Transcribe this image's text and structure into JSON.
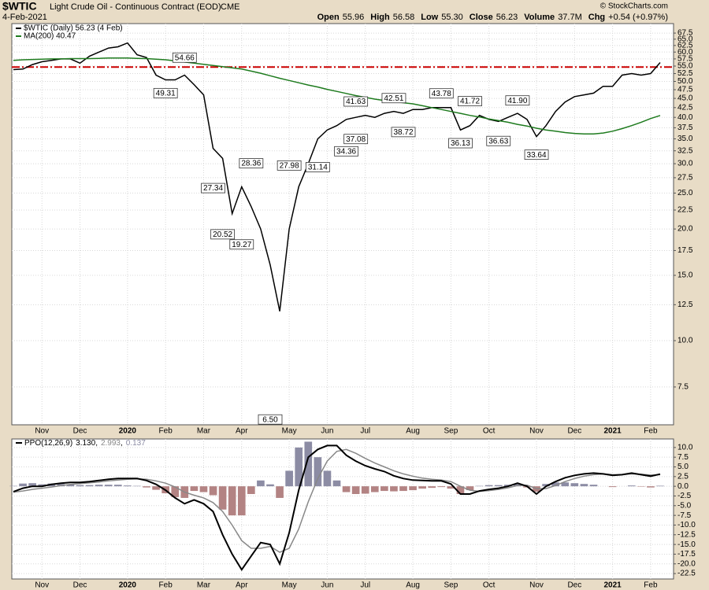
{
  "header": {
    "title": "$WTIC",
    "subtitle": "Light Crude Oil - Continuous Contract (EOD)",
    "exchange": "CME",
    "date": "4-Feb-2021",
    "credit": "© StockCharts.com",
    "stats": [
      {
        "label": "Open",
        "value": "55.96"
      },
      {
        "label": "High",
        "value": "56.58"
      },
      {
        "label": "Low",
        "value": "55.30"
      },
      {
        "label": "Close",
        "value": "56.23"
      },
      {
        "label": "Volume",
        "value": "37.7M"
      },
      {
        "label": "Chg",
        "value": "+0.54 (+0.97%)"
      }
    ]
  },
  "chart_data": [
    {
      "type": "line",
      "log_scale": true,
      "grid": true,
      "categories": [
        null,
        null,
        null,
        "Nov",
        null,
        null,
        null,
        "Dec",
        null,
        null,
        null,
        null,
        "2020",
        null,
        null,
        null,
        "Feb",
        null,
        null,
        null,
        "Mar",
        null,
        null,
        null,
        "Apr",
        null,
        null,
        null,
        null,
        "May",
        null,
        null,
        null,
        "Jun",
        null,
        null,
        null,
        "Jul",
        null,
        null,
        null,
        null,
        "Aug",
        null,
        null,
        null,
        "Sep",
        null,
        null,
        null,
        "Oct",
        null,
        null,
        null,
        null,
        "Nov",
        null,
        null,
        null,
        "Dec",
        null,
        null,
        null,
        "2021",
        null,
        null,
        null,
        "Feb",
        null
      ],
      "series": [
        {
          "name": "$WTIC (Daily) 56.23 (4 Feb)",
          "color": "#000000",
          "values": [
            53.8,
            54,
            55.5,
            56.5,
            57,
            57.5,
            57.5,
            56,
            58.5,
            60,
            61.5,
            62,
            63.5,
            59,
            58,
            52,
            50.5,
            50.5,
            52,
            49,
            46,
            33,
            31,
            22,
            26,
            23,
            20,
            16,
            12,
            20,
            26,
            30,
            35,
            37,
            38,
            39.5,
            40,
            40.5,
            40,
            41,
            41.5,
            41,
            42,
            42,
            42.5,
            42.5,
            42.5,
            37,
            38,
            40.5,
            39.5,
            39,
            40,
            41,
            39.5,
            35.5,
            38,
            41.5,
            44,
            45.5,
            46,
            46.5,
            48.5,
            48.5,
            52,
            52.5,
            52,
            52.5,
            56.23
          ]
        },
        {
          "name": "MA(200) 40.47",
          "color": "#1e7b1e",
          "values": [
            57,
            57.2,
            57.3,
            57.4,
            57.5,
            57.5,
            57.6,
            57.6,
            57.6,
            57.7,
            57.8,
            57.8,
            57.8,
            57.7,
            57.6,
            57.4,
            57.2,
            56.8,
            56.4,
            56,
            55.6,
            55.2,
            54.8,
            54.4,
            54,
            53.3,
            52.6,
            51.8,
            51,
            50.3,
            49.6,
            48.9,
            48.3,
            47.6,
            47,
            46.4,
            45.8,
            45.3,
            44.8,
            44.4,
            44.1,
            43.8,
            43.5,
            43,
            42.5,
            42,
            41.5,
            41,
            40.5,
            40.1,
            39.6,
            39.2,
            38.8,
            38.3,
            37.9,
            37.4,
            37,
            36.7,
            36.4,
            36.2,
            36.1,
            36.1,
            36.3,
            36.7,
            37.3,
            38,
            38.8,
            39.7,
            40.47
          ]
        }
      ],
      "reference_line": {
        "value": 54.66,
        "color": "#cc0000"
      },
      "annotations": {
        "x": [
          16,
          18,
          21,
          22,
          24,
          25,
          27,
          29,
          32,
          35,
          36,
          36,
          40,
          41,
          45,
          47,
          48,
          51,
          53,
          55
        ],
        "values": [
          49.31,
          54.66,
          27.34,
          20.52,
          19.27,
          28.36,
          6.5,
          27.98,
          31.14,
          34.36,
          41.63,
          37.08,
          42.51,
          38.72,
          43.78,
          36.13,
          41.72,
          36.63,
          41.9,
          33.64
        ],
        "value_labels": [
          "49.31",
          "54.66",
          "27.34",
          "20.52",
          "19.27",
          "28.36",
          "6.50",
          "27.98",
          "31.14",
          "34.36",
          "41.63",
          "37.08",
          "42.51",
          "38.72",
          "43.78",
          "36.13",
          "41.72",
          "36.63",
          "41.90",
          "33.64"
        ],
        "placement": [
          "below",
          "above",
          "below",
          "below",
          "below",
          "above",
          "below",
          "above",
          "below",
          "below",
          "above",
          "below",
          "above",
          "below",
          "above",
          "below",
          "above",
          "below",
          "above",
          "below"
        ]
      },
      "ylim": [
        5.93,
        71.6
      ],
      "yticks": [
        7.5,
        {
          "value": 10,
          "label": "10.0"
        },
        12.5,
        {
          "value": 15,
          "label": "15.0"
        },
        17.5,
        {
          "value": 20,
          "label": "20.0"
        },
        22.5,
        {
          "value": 25,
          "label": "25.0"
        },
        27.5,
        {
          "value": 30,
          "label": "30.0"
        },
        32.5,
        {
          "value": 35,
          "label": "35.0"
        },
        37.5,
        {
          "value": 40,
          "label": "40.0"
        },
        42.5,
        {
          "value": 45,
          "label": "45.0"
        },
        47.5,
        {
          "value": 50,
          "label": "50.0"
        },
        52.5,
        {
          "value": 55,
          "label": "55.0"
        },
        57.5,
        {
          "value": 60,
          "label": "60.0"
        },
        62.5,
        {
          "value": 65,
          "label": "65.0"
        },
        67.5
      ]
    },
    {
      "type": "line",
      "grid": true,
      "legend_label": "PPO(12,26,9)",
      "categories": [
        null,
        null,
        null,
        "Nov",
        null,
        null,
        null,
        "Dec",
        null,
        null,
        null,
        null,
        "2020",
        null,
        null,
        null,
        "Feb",
        null,
        null,
        null,
        "Mar",
        null,
        null,
        null,
        "Apr",
        null,
        null,
        null,
        null,
        "May",
        null,
        null,
        null,
        "Jun",
        null,
        null,
        null,
        "Jul",
        null,
        null,
        null,
        null,
        "Aug",
        null,
        null,
        null,
        "Sep",
        null,
        null,
        null,
        "Oct",
        null,
        null,
        null,
        null,
        "Nov",
        null,
        null,
        null,
        "Dec",
        null,
        null,
        null,
        "2021",
        null,
        null,
        null,
        "Feb",
        null
      ],
      "series": [
        {
          "type": "bar",
          "color": "#8c8ca4",
          "negative_color": "#b38383",
          "last_label": "0.137",
          "values": [
            0.1,
            0.7,
            0.8,
            0.5,
            0.7,
            0.6,
            0.5,
            0.3,
            0.3,
            0.4,
            0.4,
            0.4,
            0.2,
            0.1,
            -0.3,
            -0.9,
            -1.8,
            -2.8,
            -3,
            -1.2,
            -1.5,
            -2.3,
            -6,
            -7.5,
            -7.5,
            -2,
            1.5,
            0.5,
            -3,
            4,
            10,
            11.5,
            7.5,
            4,
            1.5,
            -1.5,
            -2,
            -1.9,
            -1.5,
            -1.2,
            -1.3,
            -1.2,
            -1,
            -0.6,
            -0.4,
            -0.2,
            -0.6,
            -2,
            -1,
            0.1,
            0.3,
            0.3,
            0.4,
            0.6,
            -0.3,
            -1.4,
            0.6,
            1,
            1,
            0.8,
            0.6,
            0.4,
            0,
            -0.2,
            0,
            0.2,
            -0.1,
            -0.3,
            0.137
          ]
        },
        {
          "type": "line",
          "color": "#888888",
          "last_label": "2.993",
          "values": [
            -1.5,
            -1.2,
            -0.8,
            -0.5,
            -0.2,
            0.2,
            0.5,
            0.7,
            0.9,
            1.1,
            1.4,
            1.6,
            1.8,
            1.9,
            1.8,
            1.4,
            0.8,
            -0.2,
            -1.5,
            -2.3,
            -3,
            -4.2,
            -6.5,
            -10,
            -14,
            -16,
            -16,
            -15.5,
            -17,
            -16,
            -11,
            -4,
            2,
            6.5,
            9,
            9.5,
            8.5,
            7.2,
            6,
            5,
            4,
            3.2,
            2.6,
            2.1,
            1.8,
            1.6,
            1.2,
            0,
            -1,
            -1.3,
            -1.1,
            -0.8,
            -0.4,
            0.2,
            0.3,
            -0.6,
            -0.6,
            0.2,
            1.2,
            2,
            2.6,
            3,
            3.2,
            3,
            3,
            3.2,
            3.1,
            2.9,
            2.993
          ]
        },
        {
          "type": "line",
          "color": "#000000",
          "last_label": "3.130",
          "values": [
            -1.4,
            -0.5,
            0,
            0,
            0.5,
            0.8,
            1,
            1,
            1.2,
            1.5,
            1.8,
            2,
            2,
            2,
            1.5,
            0.5,
            -1,
            -3,
            -4.5,
            -3.5,
            -4.5,
            -6.5,
            -12.5,
            -17.5,
            -21.5,
            -18,
            -14.5,
            -15,
            -20,
            -12,
            -1,
            7.5,
            9.5,
            10.5,
            10.5,
            8,
            6.5,
            5.3,
            4.5,
            3.8,
            2.7,
            2,
            1.6,
            1.5,
            1.4,
            1.4,
            0.6,
            -2,
            -2,
            -1.2,
            -0.8,
            -0.5,
            0,
            0.8,
            0,
            -2,
            0,
            1.2,
            2.2,
            2.8,
            3.2,
            3.4,
            3.2,
            2.8,
            3,
            3.4,
            3,
            2.6,
            3.13
          ]
        }
      ],
      "ylim": [
        -23.9,
        12.2
      ],
      "yticks": [
        {
          "value": 10,
          "label": "10.0"
        },
        7.5,
        {
          "value": 5,
          "label": "5.0"
        },
        2.5,
        {
          "value": 0,
          "label": "0.0"
        },
        -2.5,
        {
          "value": -5,
          "label": "-5.0"
        },
        -7.5,
        {
          "value": -10,
          "label": "-10.0"
        },
        -12.5,
        {
          "value": -15,
          "label": "-15.0"
        },
        -17.5,
        {
          "value": -20,
          "label": "-20.0"
        },
        -22.5
      ]
    }
  ]
}
